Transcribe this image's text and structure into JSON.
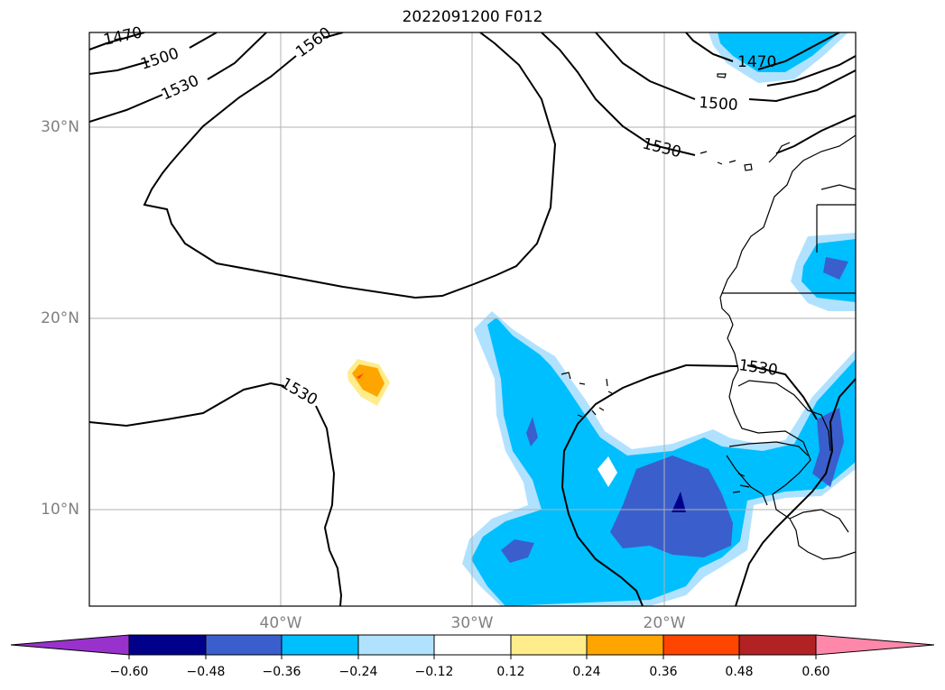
{
  "title": "2022091200 F012",
  "lat_labels": [
    "30°N",
    "20°N",
    "10°N"
  ],
  "lon_labels": [
    "40°W",
    "30°W",
    "20°W"
  ],
  "contour_labels": [
    "1470",
    "1500",
    "1530",
    "1560",
    "1470",
    "1500",
    "1530",
    "1530",
    "1530"
  ],
  "colorbar": {
    "ticks": [
      "−0.60",
      "−0.48",
      "−0.36",
      "−0.24",
      "−0.12",
      "0.12",
      "0.24",
      "0.36",
      "0.48",
      "0.60"
    ],
    "colors": [
      "#9932cc",
      "#00008b",
      "#3a5fcd",
      "#00bfff",
      "#b0e2ff",
      "#ffffff",
      "#ffec8b",
      "#ffa500",
      "#ff4500",
      "#b22222",
      "#ff88aa"
    ]
  },
  "fill_colors": {
    "level_1": "#b0e2ff",
    "level_2": "#00bfff",
    "level_3": "#3a5fcd",
    "level_4": "#00008b",
    "pos_1": "#ffec8b",
    "pos_2": "#ffa500",
    "pos_3": "#ff4500"
  }
}
